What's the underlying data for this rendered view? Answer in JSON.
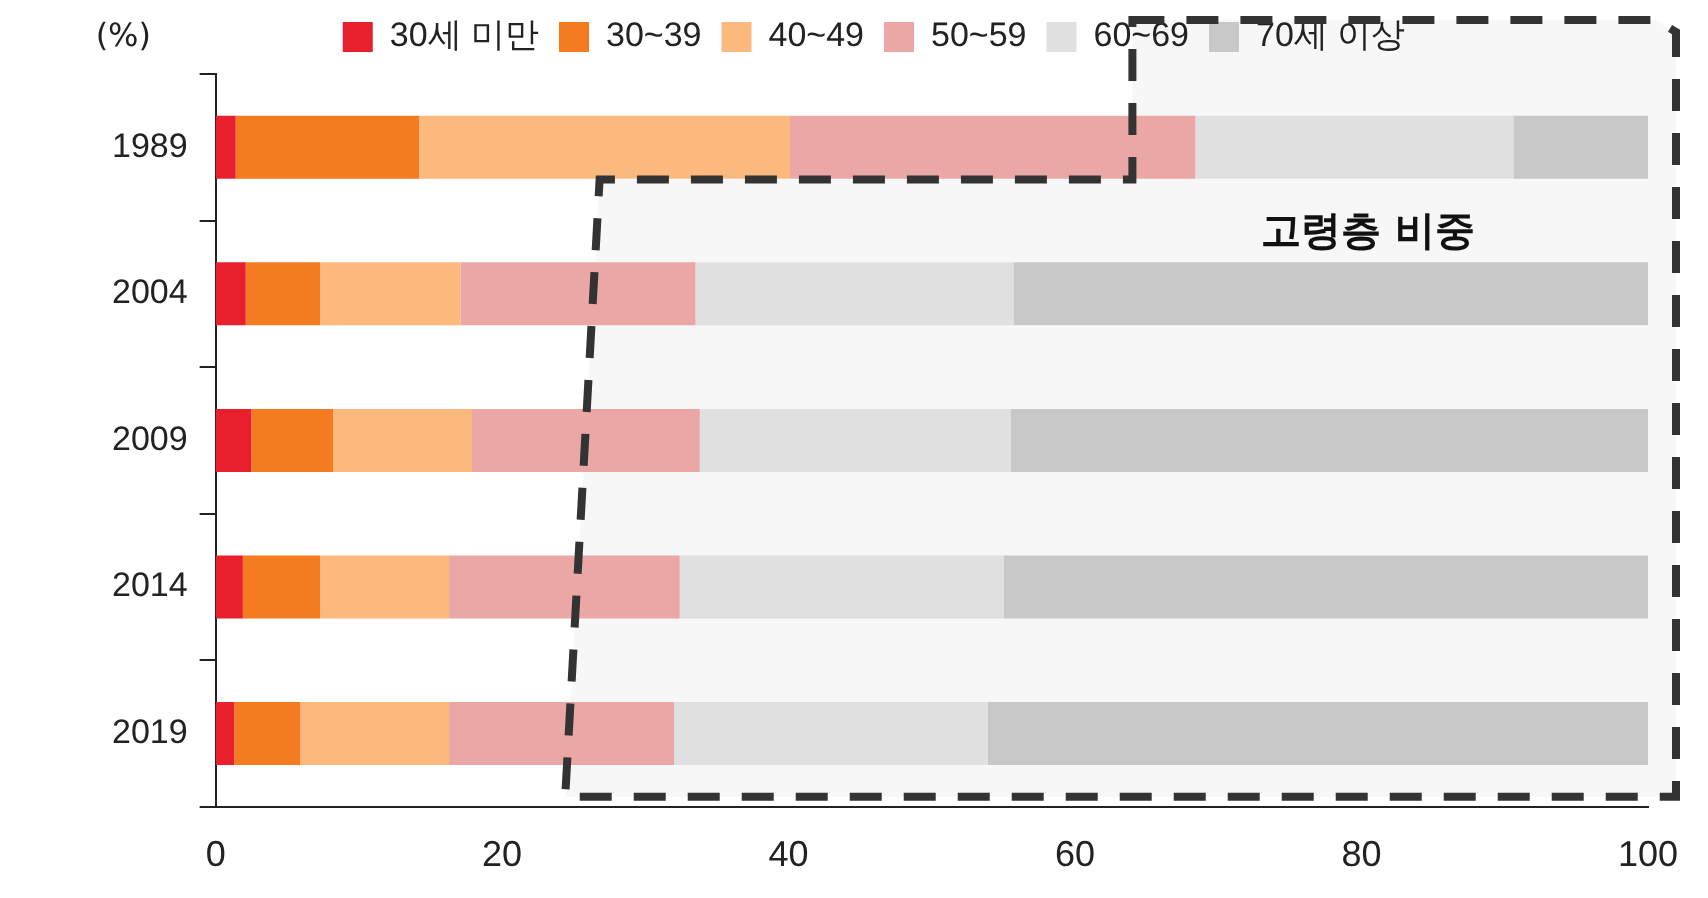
{
  "chart_data": {
    "type": "bar",
    "orientation": "horizontal",
    "stacked": true,
    "categories": [
      "1989",
      "2004",
      "2009",
      "2014",
      "2019"
    ],
    "series": [
      {
        "name": "30세 미만",
        "color": "#e8202d",
        "values": [
          1.4,
          2.1,
          2.5,
          1.9,
          1.3
        ]
      },
      {
        "name": "30~39",
        "color": "#f47b20",
        "values": [
          12.8,
          5.2,
          5.7,
          5.4,
          4.6
        ]
      },
      {
        "name": "40~49",
        "color": "#fbb97e",
        "values": [
          25.9,
          9.8,
          9.7,
          9.0,
          10.4
        ]
      },
      {
        "name": "50~59",
        "color": "#eba6a6",
        "values": [
          28.3,
          16.4,
          15.9,
          16.1,
          15.7
        ]
      },
      {
        "name": "60~69",
        "color": "#e0e0e0",
        "values": [
          22.2,
          22.2,
          21.7,
          22.6,
          21.9
        ]
      },
      {
        "name": "70세 이상",
        "color": "#c8c8c8",
        "values": [
          9.4,
          44.3,
          44.5,
          45.0,
          46.1
        ]
      }
    ],
    "xlim": [
      0,
      100
    ],
    "xticks": [
      0,
      20,
      40,
      60,
      80,
      100
    ],
    "grid": false,
    "legend": "top",
    "annotations": [
      "(%)",
      "고령층 비중"
    ]
  }
}
